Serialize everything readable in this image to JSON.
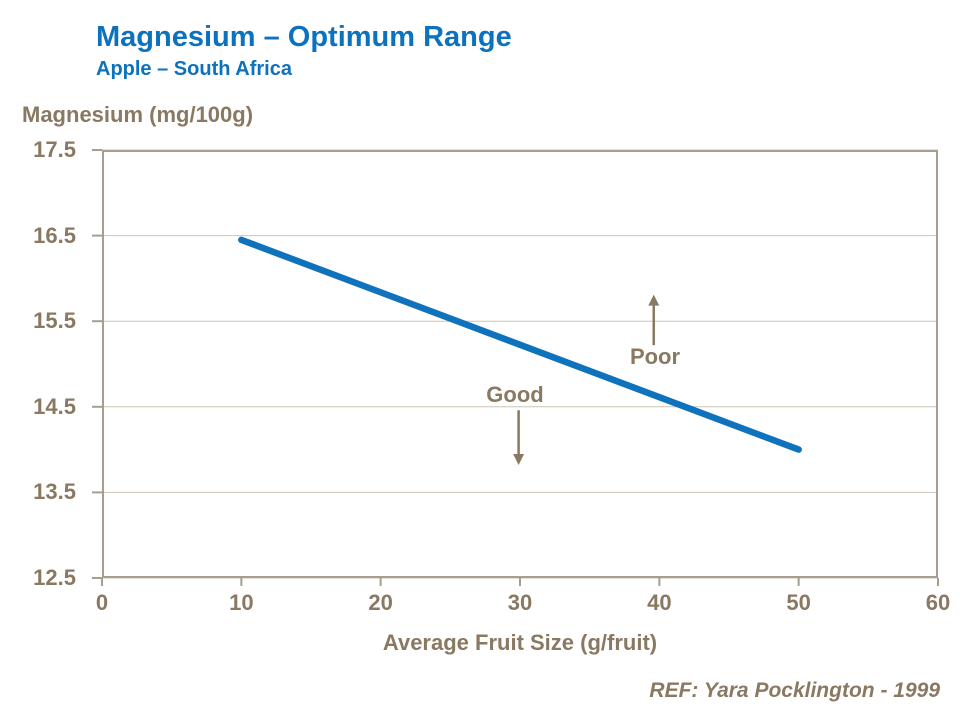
{
  "header": {
    "title": "Magnesium – Optimum Range",
    "subtitle": "Apple – South Africa"
  },
  "colors": {
    "accent_blue": "#0d72be",
    "line_blue": "#0f72bc",
    "text_brown": "#8a7962",
    "axis_border": "#a89e90",
    "gridline": "#ccc5b8"
  },
  "chart_data": {
    "type": "line",
    "title": "Magnesium – Optimum Range",
    "subtitle": "Apple – South Africa",
    "ylabel": "Magnesium (mg/100g)",
    "xlabel": "Average Fruit Size (g/fruit)",
    "xlim": [
      0,
      60
    ],
    "ylim": [
      12.5,
      17.5
    ],
    "x_ticks": [
      0,
      10,
      20,
      30,
      40,
      50,
      60
    ],
    "y_ticks": [
      17.5,
      16.5,
      15.5,
      14.5,
      13.5,
      12.5
    ],
    "grid": "horizontal gridlines at each y tick, full border around plot",
    "legend": "none",
    "series": [
      {
        "name": "Magnesium optimum range line",
        "color": "#0f72bc",
        "points": [
          [
            10,
            16.45
          ],
          [
            50,
            14.0
          ]
        ]
      }
    ],
    "annotations": [
      {
        "label": "Good",
        "arrow_dir": "down",
        "arrow_x": 29.9,
        "arrow_y_start": 14.46,
        "arrow_y_end": 13.82
      },
      {
        "label": "Poor",
        "arrow_dir": "up",
        "arrow_x": 39.6,
        "arrow_y_start": 15.22,
        "arrow_y_end": 15.81
      }
    ]
  },
  "footer": {
    "ref": "REF: Yara Pocklington - 1999"
  }
}
